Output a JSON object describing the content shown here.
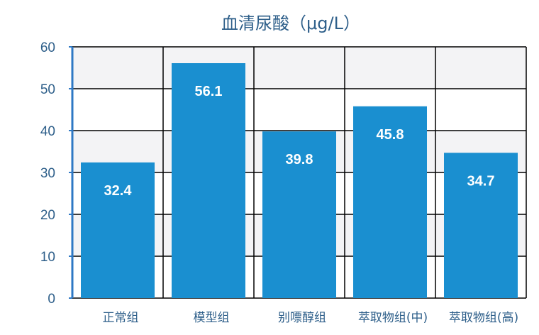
{
  "chart_data": {
    "type": "bar",
    "title": "血清尿酸（μg/L）",
    "categories": [
      "正常组",
      "模型组",
      "别嘌醇组",
      "萃取物组(中)",
      "萃取物组(高)"
    ],
    "values": [
      32.4,
      56.1,
      39.8,
      45.8,
      34.7
    ],
    "data_labels": [
      "32.4",
      "56.1",
      "39.8",
      "45.8",
      "34.7"
    ],
    "yticks": [
      "0",
      "10",
      "20",
      "30",
      "40",
      "50",
      "60"
    ],
    "ylim": [
      0,
      60
    ],
    "xlabel": "",
    "ylabel": "",
    "grid": true,
    "colors": {
      "bar": "#1a8fd0",
      "band": "#f3f3f5",
      "grid": "#000000",
      "axis": "#2e78c4",
      "text": "#2e5f8a"
    }
  }
}
